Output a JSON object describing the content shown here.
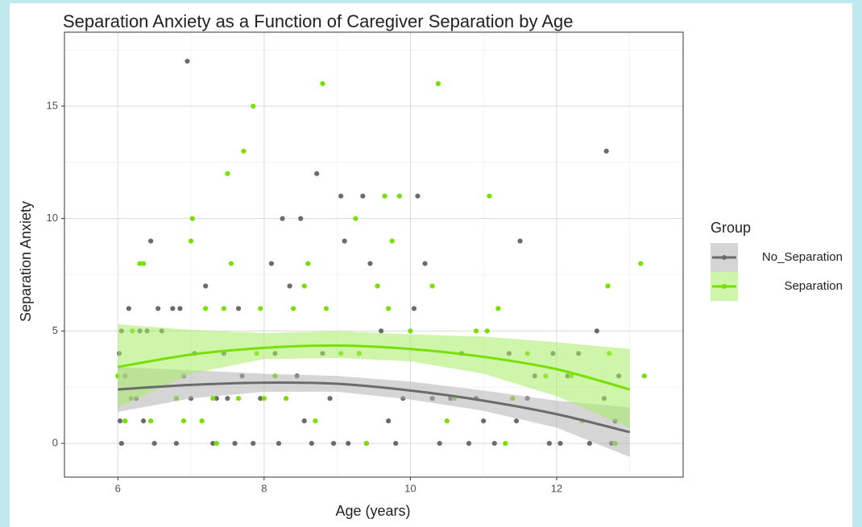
{
  "chart_data": {
    "type": "scatter",
    "title": "Separation Anxiety as a Function of Caregiver Separation by Age",
    "x_label": "Age (years)",
    "y_label": "Separation Anxiety",
    "legend_title": "Group",
    "legend_position": "right",
    "grid": true,
    "xlim": [
      5.27,
      13.73
    ],
    "ylim": [
      -1.5,
      18.29
    ],
    "xticks": [
      6,
      8,
      10,
      12
    ],
    "yticks": [
      0,
      5,
      10,
      15
    ],
    "xminor_ticks": [
      7,
      9,
      11,
      13
    ],
    "yminor_ticks": [
      2.5,
      7.5,
      12.5,
      17.5
    ],
    "series": [
      {
        "name": "No_Separation",
        "color": "#6b6b6b",
        "band_color": "#b3b3b3",
        "x": [
          6.02,
          6.03,
          6.05,
          6.05,
          6.1,
          6.15,
          6.18,
          6.25,
          6.3,
          6.35,
          6.4,
          6.45,
          6.5,
          6.55,
          6.6,
          6.75,
          6.8,
          6.85,
          6.95,
          6.8,
          6.9,
          7.0,
          7.05,
          7.2,
          7.3,
          7.35,
          7.45,
          7.5,
          7.6,
          7.65,
          7.7,
          7.85,
          7.95,
          8.1,
          8.15,
          8.2,
          8.25,
          8.35,
          8.45,
          8.5,
          8.55,
          8.65,
          8.72,
          8.8,
          8.9,
          8.95,
          9.05,
          9.1,
          9.15,
          9.3,
          9.35,
          9.4,
          9.45,
          9.6,
          9.7,
          9.8,
          9.9,
          10.05,
          10.1,
          10.2,
          10.3,
          10.4,
          10.55,
          10.7,
          10.8,
          10.9,
          11.0,
          11.15,
          11.35,
          11.45,
          11.5,
          11.6,
          11.7,
          11.9,
          11.95,
          12.05,
          12.15,
          12.3,
          12.45,
          12.55,
          12.65,
          12.68,
          12.75,
          12.85,
          12.8
        ],
        "values": [
          4,
          1,
          0,
          5,
          3,
          6,
          2,
          2,
          5,
          1,
          5,
          9,
          0,
          6,
          5,
          6,
          2,
          6,
          17,
          0,
          3,
          2,
          4,
          7,
          0,
          2,
          4,
          2,
          0,
          6,
          3,
          0,
          2,
          8,
          4,
          0,
          10,
          7,
          3,
          10,
          1,
          0,
          12,
          4,
          2,
          0,
          11,
          9,
          0,
          4,
          11,
          0,
          8,
          5,
          1,
          0,
          2,
          6,
          11,
          8,
          2,
          0,
          2,
          4,
          0,
          2,
          1,
          0,
          4,
          1,
          9,
          2,
          3,
          0,
          4,
          0,
          3,
          4,
          0,
          5,
          2,
          13,
          0,
          3,
          1
        ],
        "fit": {
          "x": [
            6,
            7,
            8,
            9,
            10,
            11,
            12,
            13
          ],
          "values": [
            2.4,
            2.6,
            2.7,
            2.65,
            2.35,
            1.9,
            1.3,
            0.5
          ],
          "lower": [
            1.4,
            2.0,
            2.3,
            2.3,
            1.95,
            1.45,
            0.7,
            -0.6
          ],
          "upper": [
            3.4,
            3.25,
            3.1,
            3.0,
            2.75,
            2.35,
            1.9,
            1.6
          ]
        }
      },
      {
        "name": "Separation",
        "color": "#77e000",
        "band_color": "#a8ec66",
        "x": [
          6.0,
          6.1,
          6.2,
          6.3,
          6.35,
          6.45,
          6.8,
          6.9,
          7.0,
          7.02,
          7.15,
          7.2,
          7.3,
          7.35,
          7.5,
          7.55,
          7.45,
          7.65,
          7.72,
          7.85,
          7.9,
          7.95,
          8.0,
          8.15,
          8.3,
          8.4,
          8.55,
          8.6,
          8.7,
          8.8,
          8.85,
          9.05,
          9.25,
          9.3,
          9.4,
          9.55,
          9.65,
          9.7,
          9.75,
          9.85,
          10.0,
          10.3,
          10.38,
          10.5,
          10.6,
          10.9,
          11.05,
          11.08,
          11.2,
          11.3,
          11.4,
          11.6,
          11.85,
          12.2,
          12.35,
          12.7,
          12.72,
          12.8,
          13.15,
          13.2
        ],
        "values": [
          3,
          1,
          5,
          8,
          8,
          1,
          2,
          1,
          9,
          10,
          1,
          6,
          2,
          0,
          12,
          8,
          6,
          2,
          13,
          15,
          4,
          6,
          2,
          3,
          2,
          6,
          7,
          8,
          1,
          16,
          6,
          4,
          10,
          4,
          0,
          7,
          11,
          6,
          9,
          11,
          5,
          7,
          16,
          1,
          2,
          5,
          5,
          11,
          6,
          0,
          2,
          4,
          3,
          3,
          1,
          7,
          4,
          0,
          8,
          3
        ],
        "fit": {
          "x": [
            6,
            7,
            8,
            9,
            10,
            11,
            12,
            13
          ],
          "values": [
            3.4,
            3.95,
            4.25,
            4.35,
            4.2,
            3.85,
            3.3,
            2.4
          ],
          "lower": [
            1.6,
            3.1,
            3.75,
            3.8,
            3.65,
            3.1,
            2.1,
            0.7
          ],
          "upper": [
            5.3,
            5.05,
            4.9,
            5.0,
            4.85,
            4.75,
            4.5,
            4.2
          ]
        }
      }
    ]
  }
}
